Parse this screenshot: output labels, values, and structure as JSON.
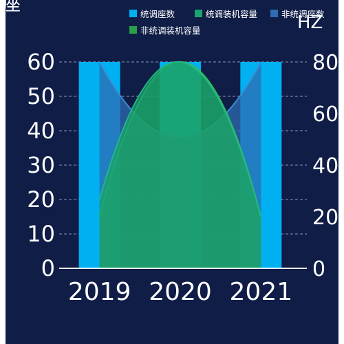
{
  "chart_data": {
    "type": "bar",
    "categories": [
      "2019",
      "2020",
      "2021"
    ],
    "left_axis": {
      "label": "座",
      "ylim": [
        0,
        60
      ],
      "ticks": [
        "0",
        "10",
        "20",
        "30",
        "40",
        "50",
        "60"
      ]
    },
    "right_axis": {
      "label": "HZ",
      "ylim": [
        0,
        80
      ],
      "ticks": [
        "0",
        "20",
        "40",
        "60",
        "80"
      ]
    },
    "grid": true,
    "legend_position": "top-right",
    "series": [
      {
        "name": "统调座数",
        "type": "bar",
        "axis": "left",
        "values": [
          60,
          60,
          60
        ],
        "color": "#00b0f0"
      },
      {
        "name": "统调装机容量",
        "type": "area",
        "axis": "left",
        "values": [
          20,
          60,
          15
        ],
        "color": "#1aa36e"
      },
      {
        "name": "非统调座数",
        "type": "area",
        "axis": "left",
        "values": [
          60,
          38,
          60
        ],
        "color": "#2f6cb3"
      },
      {
        "name": "非统调装机容量",
        "type": "area",
        "axis": "right",
        "values": [
          20,
          80,
          20
        ],
        "color": "#27a048"
      }
    ]
  }
}
